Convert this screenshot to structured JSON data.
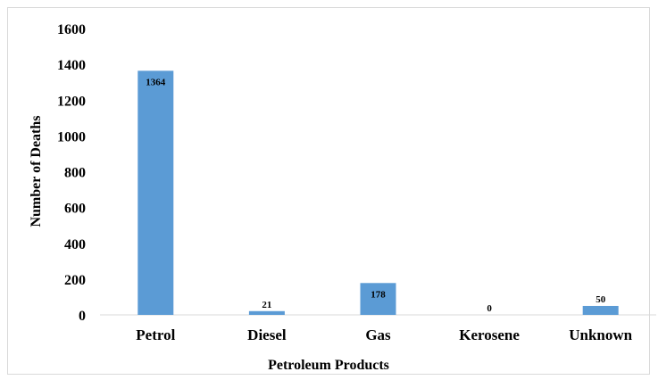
{
  "chart_data": {
    "type": "bar",
    "categories": [
      "Petrol",
      "Diesel",
      "Gas",
      "Kerosene",
      "Unknown"
    ],
    "values": [
      1364,
      21,
      178,
      0,
      50
    ],
    "data_labels": [
      "1364",
      "21",
      "178",
      "0",
      "50"
    ],
    "xlabel": "Petroleum Products",
    "ylabel": "Number of Deaths",
    "ylim": [
      0,
      1600
    ],
    "yticks": [
      0,
      200,
      400,
      600,
      800,
      1000,
      1200,
      1400,
      1600
    ],
    "grid": false,
    "legend": "none",
    "bar_color": "#5b9bd5"
  }
}
